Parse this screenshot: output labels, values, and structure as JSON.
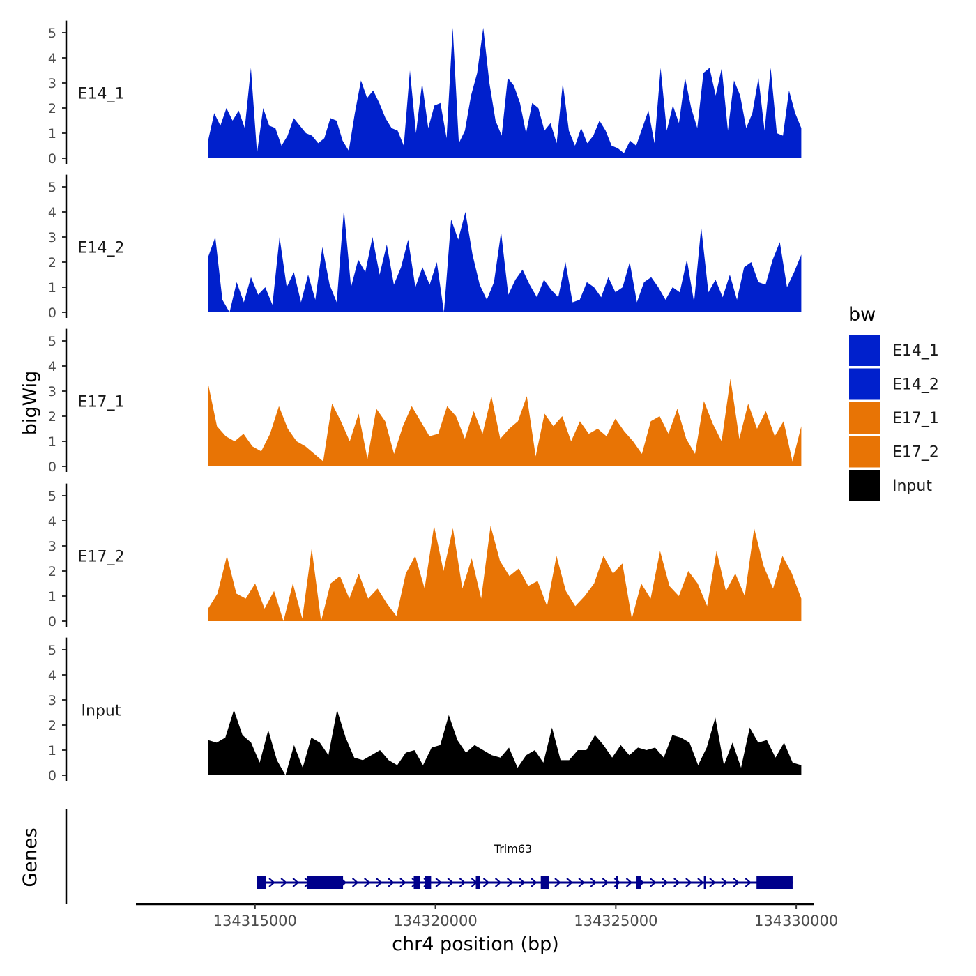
{
  "chart_data": {
    "type": "area",
    "chromosome": "chr4",
    "xlabel": "chr4 position (bp)",
    "ylabel": "bigWig",
    "genes_label": "Genes",
    "xlim": [
      134311700,
      134330500
    ],
    "x_ticks": [
      134315000,
      134320000,
      134325000,
      134330000
    ],
    "x_tick_labels": [
      "134315000",
      "134320000",
      "134325000",
      "134330000"
    ],
    "ylim": [
      0,
      5.4
    ],
    "y_ticks": [
      0,
      1,
      2,
      3,
      4,
      5
    ],
    "y_tick_labels": [
      "0",
      "1",
      "2",
      "3",
      "4",
      "5"
    ],
    "region": {
      "start": 134313700,
      "end": 134330140
    },
    "legend": {
      "title": "bw",
      "entries": [
        {
          "name": "E14_1",
          "color": "#0020CC"
        },
        {
          "name": "E14_2",
          "color": "#0020CC"
        },
        {
          "name": "E17_1",
          "color": "#E87405"
        },
        {
          "name": "E17_2",
          "color": "#E87405"
        },
        {
          "name": "Input",
          "color": "#000000"
        }
      ]
    },
    "series": [
      {
        "name": "E14_1",
        "color": "#0020CC",
        "values": [
          0.7,
          1.8,
          1.3,
          2.0,
          1.5,
          1.9,
          1.2,
          3.6,
          0.2,
          2.0,
          1.3,
          1.2,
          0.5,
          0.9,
          1.6,
          1.3,
          1.0,
          0.9,
          0.6,
          0.8,
          1.6,
          1.5,
          0.7,
          0.3,
          1.8,
          3.1,
          2.4,
          2.7,
          2.2,
          1.6,
          1.2,
          1.1,
          0.5,
          3.5,
          1.0,
          3.0,
          1.2,
          2.1,
          2.2,
          0.8,
          5.2,
          0.6,
          1.1,
          2.5,
          3.4,
          5.2,
          3.0,
          1.5,
          0.9,
          3.2,
          2.9,
          2.2,
          1.0,
          2.2,
          2.0,
          1.1,
          1.4,
          0.6,
          3.0,
          1.1,
          0.5,
          1.2,
          0.6,
          0.9,
          1.5,
          1.1,
          0.5,
          0.4,
          0.2,
          0.7,
          0.5,
          1.2,
          1.9,
          0.6,
          3.6,
          1.1,
          2.1,
          1.4,
          3.2,
          2.0,
          1.2,
          3.4,
          3.6,
          2.5,
          3.6,
          1.1,
          3.1,
          2.5,
          1.2,
          1.8,
          3.2,
          1.1,
          3.6,
          1.0,
          0.9,
          2.7,
          1.8,
          1.2
        ]
      },
      {
        "name": "E14_2",
        "color": "#0020CC",
        "values": [
          2.2,
          3.0,
          0.5,
          0.0,
          1.2,
          0.4,
          1.4,
          0.7,
          1.0,
          0.3,
          3.0,
          1.0,
          1.6,
          0.4,
          1.5,
          0.5,
          2.6,
          1.1,
          0.4,
          4.1,
          1.0,
          2.1,
          1.6,
          3.0,
          1.5,
          2.7,
          1.1,
          1.8,
          2.9,
          1.0,
          1.8,
          1.1,
          2.0,
          0.0,
          3.7,
          2.9,
          4.0,
          2.3,
          1.1,
          0.5,
          1.2,
          3.2,
          0.7,
          1.3,
          1.7,
          1.1,
          0.6,
          1.3,
          0.9,
          0.6,
          2.0,
          0.4,
          0.5,
          1.2,
          1.0,
          0.6,
          1.4,
          0.8,
          1.0,
          2.0,
          0.4,
          1.2,
          1.4,
          1.0,
          0.5,
          1.0,
          0.8,
          2.1,
          0.4,
          3.4,
          0.8,
          1.3,
          0.6,
          1.5,
          0.5,
          1.8,
          2.0,
          1.2,
          1.1,
          2.1,
          2.8,
          1.0,
          1.6,
          2.3
        ]
      },
      {
        "name": "E17_1",
        "color": "#E87405",
        "values": [
          3.3,
          1.6,
          1.2,
          1.0,
          1.3,
          0.8,
          0.6,
          1.3,
          2.4,
          1.5,
          1.0,
          0.8,
          0.5,
          0.2,
          2.5,
          1.8,
          1.0,
          2.1,
          0.3,
          2.3,
          1.8,
          0.5,
          1.6,
          2.4,
          1.8,
          1.2,
          1.3,
          2.4,
          2.0,
          1.1,
          2.2,
          1.3,
          2.8,
          1.1,
          1.5,
          1.8,
          2.8,
          0.4,
          2.1,
          1.6,
          2.0,
          1.0,
          1.8,
          1.3,
          1.5,
          1.2,
          1.9,
          1.4,
          1.0,
          0.5,
          1.8,
          2.0,
          1.3,
          2.3,
          1.1,
          0.5,
          2.6,
          1.7,
          1.0,
          3.5,
          1.1,
          2.5,
          1.5,
          2.2,
          1.2,
          1.8,
          0.2,
          1.6
        ]
      },
      {
        "name": "E17_2",
        "color": "#E87405",
        "values": [
          0.5,
          1.1,
          2.6,
          1.1,
          0.9,
          1.5,
          0.5,
          1.2,
          0.0,
          1.5,
          0.1,
          2.9,
          0.0,
          1.5,
          1.8,
          0.9,
          1.9,
          0.9,
          1.3,
          0.7,
          0.2,
          1.9,
          2.6,
          1.3,
          3.8,
          2.0,
          3.7,
          1.3,
          2.5,
          0.9,
          3.8,
          2.4,
          1.8,
          2.1,
          1.4,
          1.6,
          0.6,
          2.6,
          1.2,
          0.6,
          1.0,
          1.5,
          2.6,
          1.9,
          2.3,
          0.1,
          1.5,
          0.9,
          2.8,
          1.4,
          1.0,
          2.0,
          1.5,
          0.6,
          2.8,
          1.2,
          1.9,
          1.0,
          3.7,
          2.2,
          1.3,
          2.6,
          1.9,
          0.9
        ]
      },
      {
        "name": "Input",
        "color": "#000000",
        "values": [
          1.4,
          1.3,
          1.5,
          2.6,
          1.6,
          1.3,
          0.5,
          1.8,
          0.6,
          0.0,
          1.2,
          0.3,
          1.5,
          1.3,
          0.8,
          2.6,
          1.5,
          0.7,
          0.6,
          0.8,
          1.0,
          0.6,
          0.4,
          0.9,
          1.0,
          0.4,
          1.1,
          1.2,
          2.4,
          1.4,
          0.9,
          1.2,
          1.0,
          0.8,
          0.7,
          1.1,
          0.3,
          0.8,
          1.0,
          0.5,
          1.9,
          0.6,
          0.6,
          1.0,
          1.0,
          1.6,
          1.2,
          0.7,
          1.2,
          0.8,
          1.1,
          1.0,
          1.1,
          0.7,
          1.6,
          1.5,
          1.3,
          0.4,
          1.1,
          2.3,
          0.4,
          1.3,
          0.3,
          1.9,
          1.3,
          1.4,
          0.7,
          1.3,
          0.5,
          0.4
        ]
      }
    ],
    "gene_track": {
      "gene": "Trim63",
      "start": 134315050,
      "end": 134329900,
      "strand": "+",
      "color": "#00008B",
      "exons": [
        [
          134315050,
          134315300
        ],
        [
          134316440,
          134317440
        ],
        [
          134319400,
          134319570
        ],
        [
          134319700,
          134319880
        ],
        [
          134321120,
          134321230
        ],
        [
          134322920,
          134323140
        ],
        [
          134325000,
          134325060
        ],
        [
          134325560,
          134325700
        ],
        [
          134327440,
          134327490
        ],
        [
          134328900,
          134329900
        ]
      ]
    }
  }
}
